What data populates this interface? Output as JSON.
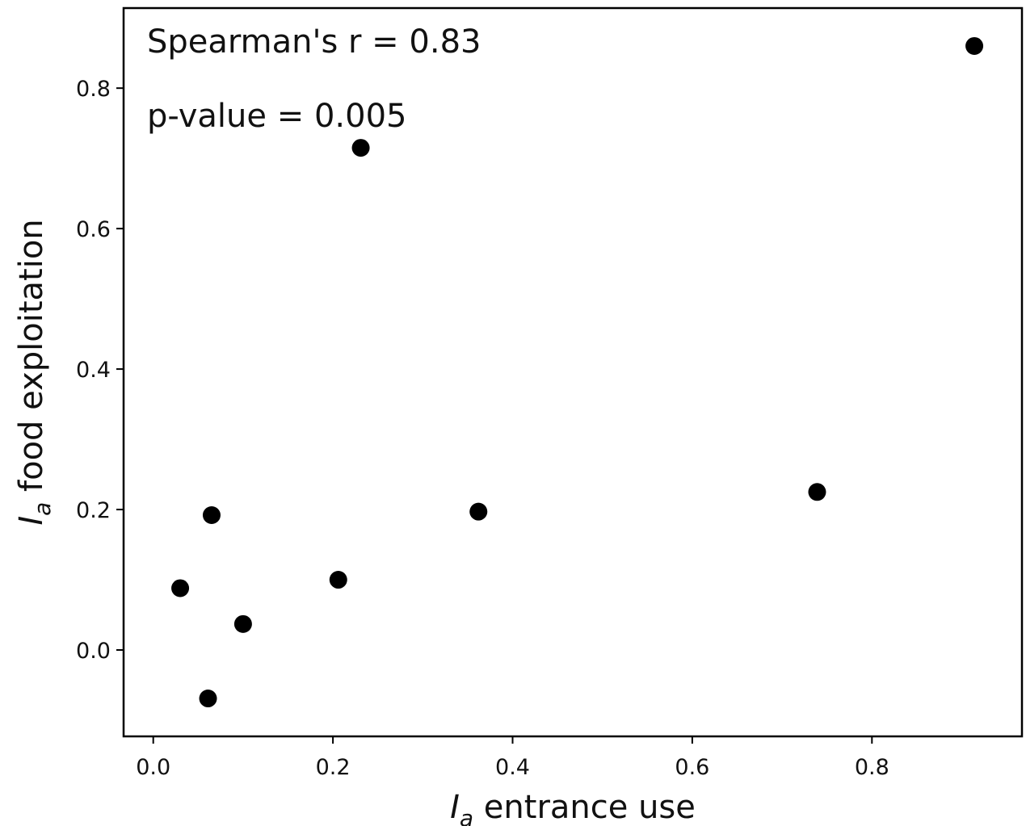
{
  "chart_data": {
    "type": "scatter",
    "title": "",
    "xlabel": {
      "symbol": "I",
      "subscript": "a",
      "text": " entrance use"
    },
    "ylabel": {
      "symbol": "I",
      "subscript": "a",
      "text": " food exploitation"
    },
    "xlim": [
      -0.033,
      0.967
    ],
    "ylim": [
      -0.123,
      0.914
    ],
    "xticks": [
      0.0,
      0.2,
      0.4,
      0.6,
      0.8
    ],
    "yticks": [
      0.0,
      0.2,
      0.4,
      0.6,
      0.8
    ],
    "xtick_labels": [
      "0.0",
      "0.2",
      "0.4",
      "0.6",
      "0.8"
    ],
    "ytick_labels": [
      "0.0",
      "0.2",
      "0.4",
      "0.6",
      "0.8"
    ],
    "grid": false,
    "marker_color": "#000000",
    "annotations": [
      "Spearman's r = 0.83",
      "p-value = 0.005"
    ],
    "series": [
      {
        "points": [
          {
            "x": 0.03,
            "y": 0.088
          },
          {
            "x": 0.065,
            "y": 0.192
          },
          {
            "x": 0.061,
            "y": -0.069
          },
          {
            "x": 0.1,
            "y": 0.037
          },
          {
            "x": 0.206,
            "y": 0.1
          },
          {
            "x": 0.231,
            "y": 0.715
          },
          {
            "x": 0.362,
            "y": 0.197
          },
          {
            "x": 0.739,
            "y": 0.225
          },
          {
            "x": 0.914,
            "y": 0.86
          }
        ]
      }
    ]
  }
}
